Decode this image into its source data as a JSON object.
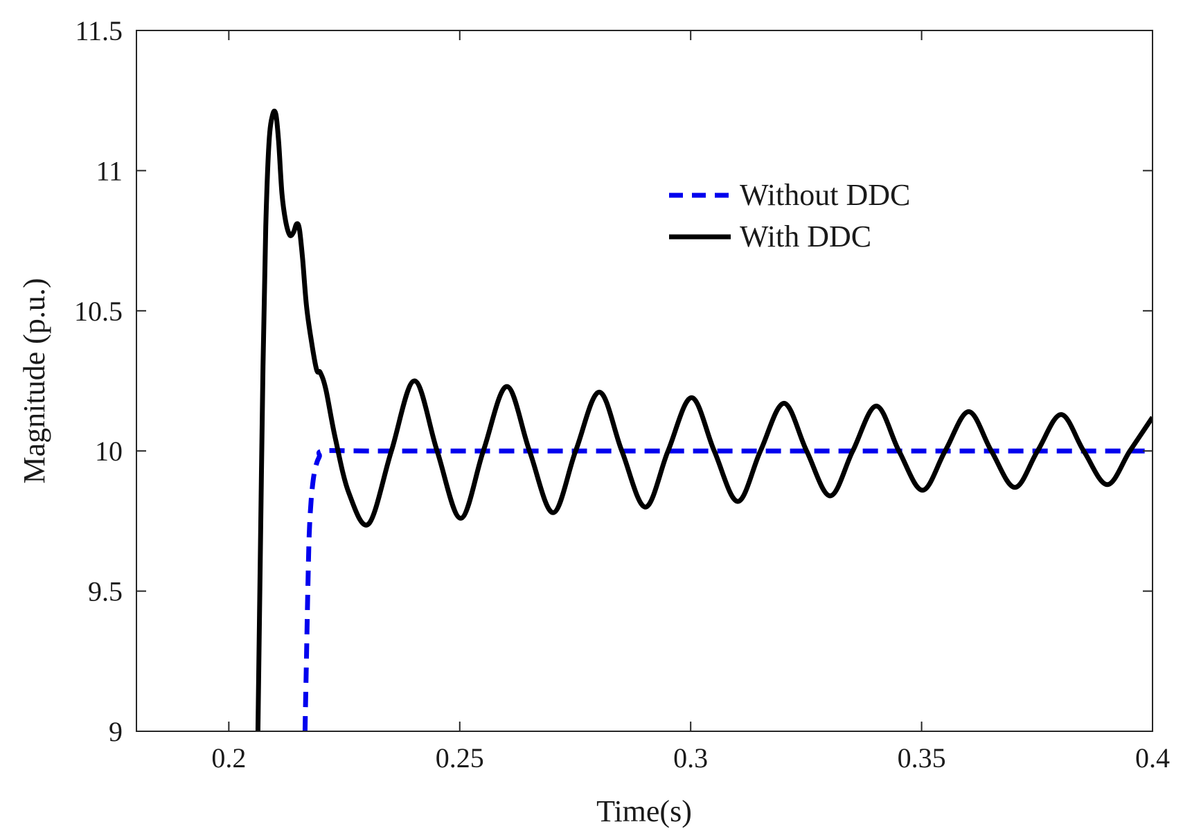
{
  "chart_data": {
    "type": "line",
    "title": "",
    "xlabel": "Time(s)",
    "ylabel": "Magnitude (p.u.)",
    "xlim": [
      0.18,
      0.4
    ],
    "ylim": [
      9,
      11.5
    ],
    "xticks": [
      0.2,
      0.25,
      0.3,
      0.35,
      0.4
    ],
    "xtick_labels": [
      "0.2",
      "0.25",
      "0.3",
      "0.35",
      "0.4"
    ],
    "yticks": [
      9,
      9.5,
      10,
      10.5,
      11,
      11.5
    ],
    "ytick_labels": [
      "9",
      "9.5",
      "10",
      "10.5",
      "11",
      "11.5"
    ],
    "grid": false,
    "legend_position": "top-right",
    "series": [
      {
        "name": "Without DDC",
        "color": "#0000ee",
        "style": "dashed",
        "x": [
          0.2165,
          0.2168,
          0.2171,
          0.2174,
          0.2178,
          0.2183,
          0.2189,
          0.2196,
          0.2205,
          0.23,
          0.25,
          0.3,
          0.35,
          0.4
        ],
        "y": [
          9.0,
          9.25,
          9.5,
          9.7,
          9.82,
          9.9,
          9.95,
          9.98,
          10.0,
          10.0,
          10.0,
          10.0,
          10.0,
          10.0
        ]
      },
      {
        "name": "With DDC",
        "color": "#000000",
        "style": "solid",
        "x": [
          0.2063,
          0.2068,
          0.2074,
          0.208,
          0.2087,
          0.2095,
          0.2102,
          0.2108,
          0.2115,
          0.2123,
          0.2132,
          0.214,
          0.2147,
          0.2153,
          0.216,
          0.2168,
          0.2178,
          0.219,
          0.2198,
          0.221,
          0.223,
          0.226,
          0.2303,
          0.2352,
          0.2402,
          0.2451,
          0.2502,
          0.2551,
          0.2602,
          0.2651,
          0.2702,
          0.2751,
          0.2802,
          0.2851,
          0.2902,
          0.2951,
          0.3002,
          0.3051,
          0.3102,
          0.3151,
          0.3202,
          0.3251,
          0.3302,
          0.3351,
          0.3402,
          0.3451,
          0.3502,
          0.3551,
          0.3602,
          0.3651,
          0.3702,
          0.3751,
          0.3802,
          0.3851,
          0.3902,
          0.3951,
          0.4
        ],
        "y": [
          9.0,
          9.6,
          10.3,
          10.8,
          11.1,
          11.2,
          11.2,
          11.1,
          10.92,
          10.82,
          10.77,
          10.78,
          10.81,
          10.79,
          10.68,
          10.52,
          10.4,
          10.29,
          10.28,
          10.22,
          10.05,
          9.85,
          9.74,
          10.0,
          10.25,
          10.0,
          9.76,
          10.0,
          10.23,
          10.0,
          9.78,
          10.0,
          10.21,
          10.0,
          9.8,
          10.0,
          10.19,
          10.0,
          9.82,
          10.0,
          10.17,
          10.0,
          9.84,
          10.0,
          10.16,
          10.0,
          9.86,
          10.0,
          10.14,
          10.0,
          9.87,
          10.0,
          10.13,
          10.0,
          9.88,
          10.0,
          10.12
        ]
      }
    ]
  }
}
